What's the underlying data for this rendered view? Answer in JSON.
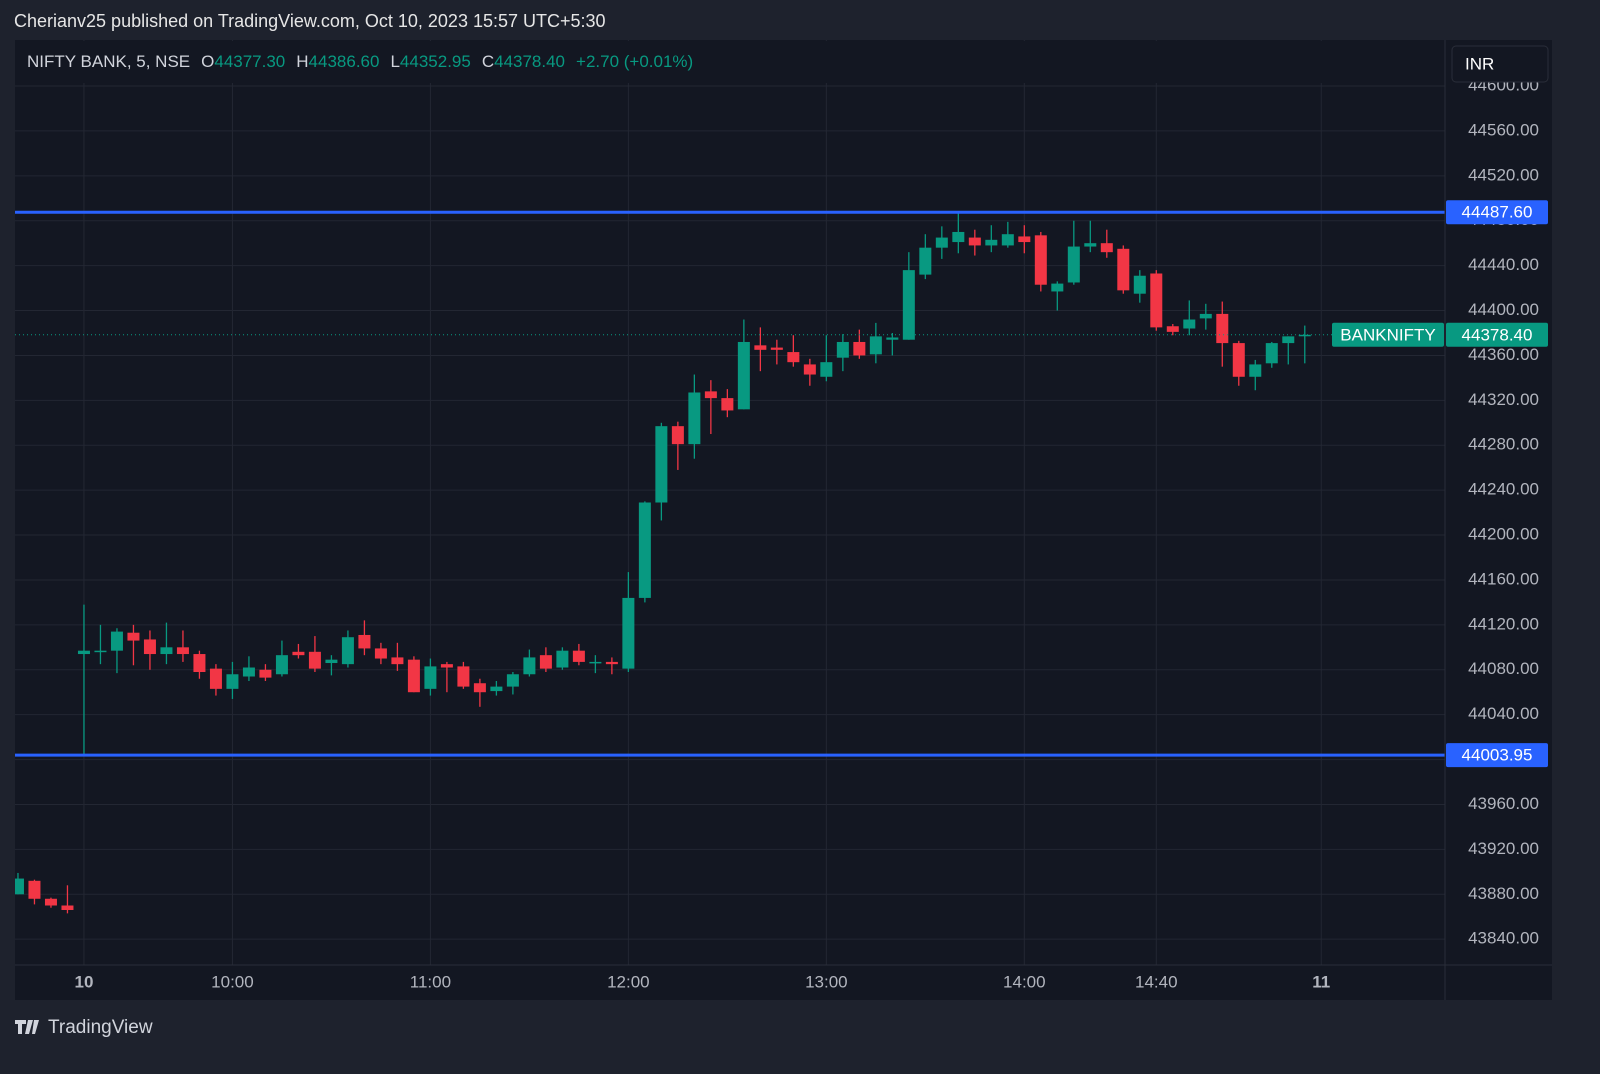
{
  "page_header": "Cherianv25 published on TradingView.com, Oct 10, 2023 15:57 UTC+5:30",
  "footer_logo": "TradingView",
  "currency_button": "INR",
  "chart_data": {
    "type": "candlestick",
    "legend": {
      "symbol": "NIFTY BANK, 5, NSE",
      "items": [
        {
          "key": "O",
          "value": "44377.30"
        },
        {
          "key": "H",
          "value": "44386.60"
        },
        {
          "key": "L",
          "value": "44352.95"
        },
        {
          "key": "C",
          "value": "44378.40"
        }
      ],
      "change": "+2.70 (+0.01%)"
    },
    "up_color": "#089981",
    "down_color": "#f23645",
    "x": [
      "15:10",
      "15:15",
      "15:20",
      "15:25",
      "09:15",
      "09:20",
      "09:25",
      "09:30",
      "09:35",
      "09:40",
      "09:45",
      "09:50",
      "09:55",
      "10:00",
      "10:05",
      "10:10",
      "10:15",
      "10:20",
      "10:25",
      "10:30",
      "10:35",
      "10:40",
      "10:45",
      "10:50",
      "10:55",
      "11:00",
      "11:05",
      "11:10",
      "11:15",
      "11:20",
      "11:25",
      "11:30",
      "11:35",
      "11:40",
      "11:45",
      "11:50",
      "11:55",
      "12:00",
      "12:05",
      "12:10",
      "12:15",
      "12:20",
      "12:25",
      "12:30",
      "12:35",
      "12:40",
      "12:45",
      "12:50",
      "12:55",
      "13:00",
      "13:05",
      "13:10",
      "13:15",
      "13:20",
      "13:25",
      "13:30",
      "13:35",
      "13:40",
      "13:45",
      "13:50",
      "13:55",
      "14:00",
      "14:05",
      "14:10",
      "14:15",
      "14:20",
      "14:25",
      "14:30",
      "14:35",
      "14:40",
      "14:45",
      "14:50",
      "14:55",
      "15:00",
      "15:05",
      "15:10",
      "15:15",
      "15:20",
      "15:25"
    ],
    "open": [
      43880,
      43892,
      43876,
      43870,
      44094,
      44096,
      44097,
      44113,
      44107,
      44094,
      44100,
      44094,
      44081,
      44063,
      44074,
      44080,
      44076,
      44096,
      44096,
      44086,
      44085,
      44111,
      44099,
      44091,
      44089,
      44063,
      44085,
      44083,
      44068,
      44061,
      44065,
      44076,
      44093,
      44082,
      44097,
      44086,
      44087,
      44081,
      44144,
      44229,
      44297,
      44281,
      44328,
      44322,
      44312,
      44369,
      44367,
      44363,
      44352,
      44341,
      44358,
      44372,
      44361,
      44374,
      44374,
      44432,
      44456,
      44461,
      44465,
      44458,
      44458,
      44466,
      44467,
      44417,
      44425,
      44457,
      44460,
      44455,
      44415,
      44433,
      44386,
      44384,
      44393,
      44397,
      44371,
      44341,
      44353,
      44371,
      44377.3
    ],
    "high": [
      43899,
      43893,
      43877,
      43888,
      44138,
      44120,
      44117,
      44120,
      44115,
      44122,
      44115,
      44097,
      44085,
      44087,
      44092,
      44085,
      44106,
      44103,
      44110,
      44093,
      44115,
      44124,
      44104,
      44104,
      44092,
      44090,
      44087,
      44087,
      44072,
      44070,
      44078,
      44098,
      44100,
      44100,
      44103,
      44093,
      44091,
      44167,
      44230,
      44300,
      44301,
      44343,
      44338,
      44330,
      44392,
      44385,
      44374,
      44378,
      44357,
      44378,
      44379,
      44383,
      44389,
      44380,
      44452,
      44468,
      44475,
      44487.6,
      44472,
      44476,
      44479,
      44476,
      44470,
      44426,
      44480,
      44480,
      44472,
      44458,
      44436,
      44436,
      44388,
      44409,
      44406,
      44408,
      44373,
      44356,
      44372,
      44377,
      44386.6
    ],
    "low": [
      43880,
      43871,
      43868,
      43863,
      44003.95,
      44085,
      44077,
      44084,
      44080,
      44085,
      44087,
      44072,
      44057,
      44054,
      44070,
      44070,
      44074,
      44090,
      44078,
      44075,
      44082,
      44093,
      44085,
      44079,
      44060,
      44057,
      44060,
      44063,
      44047,
      44057,
      44058,
      44074,
      44078,
      44080,
      44084,
      44077,
      44076,
      44078,
      44140,
      44213,
      44258,
      44268,
      44290,
      44305,
      44312,
      44346,
      44352,
      44350,
      44333,
      44337,
      44346,
      44357,
      44353,
      44360,
      44374,
      44428,
      44446,
      44451,
      44449,
      44452,
      44456,
      44451,
      44417,
      44400,
      44423,
      44452,
      44447,
      44415,
      44407,
      44382,
      44378,
      44378,
      44383,
      44350,
      44333,
      44329,
      44349,
      44352,
      44352.95
    ],
    "close": [
      43894,
      43876,
      43870,
      43866,
      44097,
      44097,
      44114,
      44106,
      44094,
      44100,
      44094,
      44078,
      44063,
      44076,
      44082,
      44073,
      44093,
      44093,
      44081,
      44089,
      44109,
      44099,
      44090,
      44085,
      44060,
      44083,
      44082,
      44065,
      44060,
      44065,
      44076,
      44091,
      44081,
      44097,
      44087,
      44087,
      44085,
      44144,
      44229,
      44297,
      44281,
      44327,
      44322,
      44311,
      44372,
      44365,
      44365,
      44354,
      44343,
      44354,
      44372,
      44360,
      44377,
      44376,
      44436,
      44456,
      44465,
      44470,
      44458,
      44463,
      44468,
      44461,
      44423,
      44424,
      44457,
      44460,
      44452,
      44418,
      44431,
      44385,
      44381,
      44392,
      44397,
      44371,
      44341,
      44352,
      44371,
      44377,
      44378.4
    ],
    "xlim": [
      -0.18,
      86.5
    ],
    "xticks": [
      {
        "value": 4,
        "label": "10"
      },
      {
        "value": 13,
        "label": "10:00"
      },
      {
        "value": 25,
        "label": "11:00"
      },
      {
        "value": 37,
        "label": "12:00"
      },
      {
        "value": 49,
        "label": "13:00"
      },
      {
        "value": 61,
        "label": "14:00"
      },
      {
        "value": 69,
        "label": "14:40"
      },
      {
        "value": 79,
        "label": "11"
      }
    ],
    "ylim": [
      43817,
      44641
    ],
    "yticks": [
      {
        "value": 43840,
        "label": "43840.00"
      },
      {
        "value": 43880,
        "label": "43880.00"
      },
      {
        "value": 43920,
        "label": "43920.00"
      },
      {
        "value": 43960,
        "label": "43960.00"
      },
      {
        "value": 44000,
        "label": "44000.00"
      },
      {
        "value": 44040,
        "label": "44040.00"
      },
      {
        "value": 44080,
        "label": "44080.00"
      },
      {
        "value": 44120,
        "label": "44120.00"
      },
      {
        "value": 44160,
        "label": "44160.00"
      },
      {
        "value": 44200,
        "label": "44200.00"
      },
      {
        "value": 44240,
        "label": "44240.00"
      },
      {
        "value": 44280,
        "label": "44280.00"
      },
      {
        "value": 44320,
        "label": "44320.00"
      },
      {
        "value": 44360,
        "label": "44360.00"
      },
      {
        "value": 44400,
        "label": "44400.00"
      },
      {
        "value": 44440,
        "label": "44440.00"
      },
      {
        "value": 44480,
        "label": "44480.00"
      },
      {
        "value": 44520,
        "label": "44520.00"
      },
      {
        "value": 44560,
        "label": "44560.00"
      },
      {
        "value": 44600,
        "label": "44600.00"
      }
    ],
    "grid": true,
    "levels": [
      {
        "value": 44487.6,
        "label": "44487.60",
        "color": "#2962ff"
      },
      {
        "value": 44003.95,
        "label": "44003.95",
        "color": "#2962ff"
      }
    ],
    "price_line": {
      "name": "BANKNIFTY",
      "value": 44378.4,
      "label": "44378.40",
      "color": "#089981"
    }
  }
}
